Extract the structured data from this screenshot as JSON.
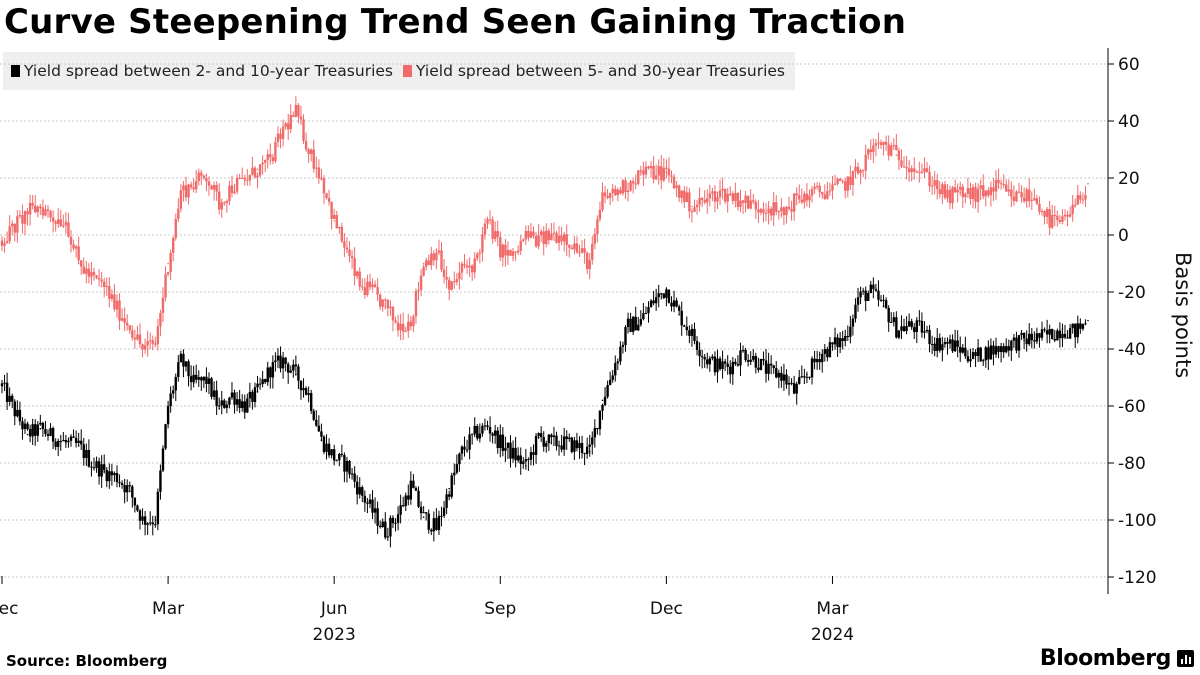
{
  "chart_data": {
    "type": "candlestick-line",
    "title": "Curve Steepening Trend Seen Gaining Traction",
    "ylabel": "Basis points",
    "ylim": [
      -125,
      60
    ],
    "yticks": [
      60,
      40,
      20,
      0,
      -20,
      -40,
      -60,
      -80,
      -100,
      -120
    ],
    "grid": true,
    "legend_position": "top-left",
    "x_month_labels": [
      {
        "label": "Dec",
        "index": 0
      },
      {
        "label": "Mar",
        "index": 13
      },
      {
        "label": "Jun",
        "index": 26
      },
      {
        "label": "Sep",
        "index": 39
      },
      {
        "label": "Dec",
        "index": 52
      },
      {
        "label": "Mar",
        "index": 65
      }
    ],
    "x_year_labels": [
      {
        "label": "2023",
        "index": 26
      },
      {
        "label": "2024",
        "index": 65
      }
    ],
    "series": [
      {
        "name": "Yield spread between 2- and 10-year Treasuries",
        "color": "#000000",
        "weekly_values": [
          -53,
          -62,
          -70,
          -68,
          -71,
          -73,
          -74,
          -80,
          -83,
          -85,
          -90,
          -100,
          -100,
          -60,
          -44,
          -52,
          -51,
          -61,
          -56,
          -60,
          -55,
          -47,
          -44,
          -49,
          -56,
          -72,
          -78,
          -81,
          -90,
          -97,
          -104,
          -98,
          -88,
          -99,
          -103,
          -89,
          -76,
          -70,
          -67,
          -73,
          -77,
          -81,
          -71,
          -73,
          -73,
          -74,
          -76,
          -58,
          -45,
          -32,
          -30,
          -23,
          -19,
          -28,
          -35,
          -43,
          -46,
          -46,
          -41,
          -44,
          -48,
          -49,
          -55,
          -49,
          -42,
          -39,
          -36,
          -22,
          -20,
          -25,
          -33,
          -32,
          -33,
          -38,
          -38,
          -40,
          -43,
          -41,
          -40,
          -38,
          -37,
          -36,
          -35,
          -33,
          -34,
          -30
        ]
      },
      {
        "name": "Yield spread between 5- and 30-year Treasuries",
        "color": "#f06a6a",
        "weekly_values": [
          -2,
          3,
          8,
          10,
          6,
          5,
          -10,
          -15,
          -18,
          -26,
          -32,
          -40,
          -38,
          -10,
          15,
          18,
          21,
          11,
          17,
          19,
          23,
          26,
          37,
          43,
          30,
          20,
          5,
          -6,
          -18,
          -20,
          -25,
          -32,
          -30,
          -10,
          -5,
          -20,
          -12,
          -10,
          5,
          -5,
          -8,
          0,
          -2,
          0,
          0,
          -5,
          -10,
          13,
          15,
          18,
          22,
          22,
          22,
          15,
          10,
          12,
          15,
          14,
          12,
          10,
          10,
          7,
          12,
          14,
          15,
          16,
          18,
          22,
          30,
          32,
          28,
          25,
          22,
          18,
          13,
          15,
          14,
          15,
          17,
          13,
          14,
          12,
          5,
          4,
          10,
          18
        ]
      }
    ]
  },
  "footer": {
    "source": "Source: Bloomberg",
    "brand": "Bloomberg"
  }
}
